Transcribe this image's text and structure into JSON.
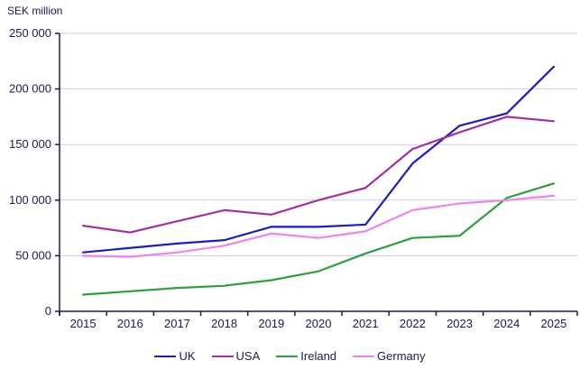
{
  "chart_data": {
    "type": "line",
    "unit_label": "SEK million",
    "ylabel": "SEK million",
    "xlabel": "",
    "x": [
      2015,
      2016,
      2017,
      2018,
      2019,
      2020,
      2021,
      2022,
      2023,
      2024,
      2025
    ],
    "ylim": [
      0,
      250000
    ],
    "yticks": [
      {
        "value": 0,
        "label": "0"
      },
      {
        "value": 50000,
        "label": "50 000"
      },
      {
        "value": 100000,
        "label": "100 000"
      },
      {
        "value": 150000,
        "label": "150 000"
      },
      {
        "value": 200000,
        "label": "200 000"
      },
      {
        "value": 250000,
        "label": "250 000"
      }
    ],
    "grid": true,
    "legend_position": "bottom",
    "series": [
      {
        "name": "UK",
        "color": "#1f1fb4",
        "values": [
          53000,
          57000,
          61000,
          64000,
          76000,
          76000,
          78000,
          133000,
          167000,
          178000,
          220000
        ]
      },
      {
        "name": "USA",
        "color": "#a1329c",
        "values": [
          77000,
          71000,
          81000,
          91000,
          87000,
          100000,
          111000,
          146000,
          161000,
          175000,
          171000
        ]
      },
      {
        "name": "Ireland",
        "color": "#2f9e41",
        "values": [
          15000,
          18000,
          21000,
          23000,
          28000,
          36000,
          52000,
          66000,
          68000,
          102000,
          115000
        ]
      },
      {
        "name": "Germany",
        "color": "#ee85e6",
        "values": [
          50000,
          49000,
          53000,
          59000,
          70000,
          66000,
          72000,
          91000,
          97000,
          100000,
          104000
        ]
      }
    ],
    "colors": {
      "axis": "#1a1a4e",
      "grid": "#cfccea",
      "text": "#1a1a4e",
      "background": "#ffffff"
    }
  }
}
